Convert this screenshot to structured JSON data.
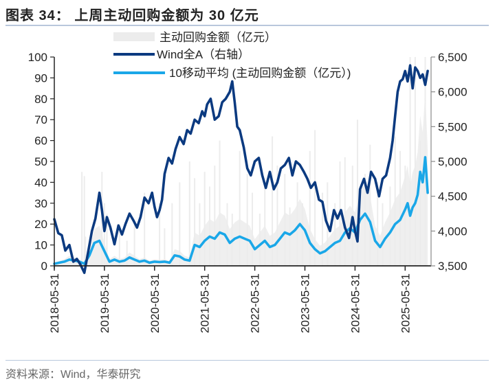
{
  "title": "图表 34： 上周主动回购金额为 30 亿元",
  "source": "资料来源：Wind，华泰研究",
  "colors": {
    "bars": "#ececec",
    "wind": "#0b3a80",
    "ma10": "#1aa7e8",
    "axis": "#222222",
    "rule": "#b8c7dc"
  },
  "chart_data": {
    "type": "line",
    "title": "上周主动回购金额为 30 亿元",
    "legend_position": "top",
    "legend": [
      {
        "key": "bars",
        "label": "主动回购金额（亿元）"
      },
      {
        "key": "wind",
        "label": "Wind全A（右轴）"
      },
      {
        "key": "ma10",
        "label": "10移动平均 (主动回购金额（亿元）)"
      }
    ],
    "x_ticks": [
      "2018-05-31",
      "2019-05-31",
      "2020-05-31",
      "2021-05-31",
      "2022-05-31",
      "2023-05-31",
      "2024-05-31",
      "2025-05-31"
    ],
    "y_left": {
      "min": 0,
      "max": 100,
      "ticks": [
        "0",
        "10",
        "20",
        "30",
        "40",
        "50",
        "60",
        "70",
        "80",
        "90",
        "100"
      ]
    },
    "y_right": {
      "min": 3500,
      "max": 6500,
      "ticks": [
        "3,500",
        "4,000",
        "4,500",
        "5,000",
        "5,500",
        "6,000",
        "6,500"
      ]
    },
    "grid": false,
    "series": [
      {
        "name": "Wind全A（右轴）",
        "axis": "right",
        "t": [
          0,
          0.08,
          0.15,
          0.22,
          0.3,
          0.38,
          0.45,
          0.52,
          0.6,
          0.68,
          0.75,
          0.82,
          0.9,
          0.95,
          1.0,
          1.05,
          1.12,
          1.2,
          1.28,
          1.35,
          1.42,
          1.5,
          1.58,
          1.65,
          1.72,
          1.8,
          1.88,
          1.95,
          2.0,
          2.05,
          2.1,
          2.15,
          2.2,
          2.28,
          2.35,
          2.42,
          2.5,
          2.58,
          2.65,
          2.72,
          2.8,
          2.88,
          2.95,
          3.0,
          3.05,
          3.12,
          3.2,
          3.28,
          3.35,
          3.42,
          3.5,
          3.55,
          3.6,
          3.65,
          3.7,
          3.78,
          3.85,
          3.92,
          4.0,
          4.08,
          4.15,
          4.22,
          4.3,
          4.38,
          4.45,
          4.52,
          4.6,
          4.68,
          4.75,
          4.82,
          4.9,
          4.98,
          5.05,
          5.12,
          5.2,
          5.28,
          5.35,
          5.42,
          5.5,
          5.58,
          5.65,
          5.72,
          5.8,
          5.88,
          5.95,
          6.0,
          6.05,
          6.1,
          6.18,
          6.25,
          6.32,
          6.4,
          6.48,
          6.55,
          6.62,
          6.7,
          6.75,
          6.8,
          6.85,
          6.9,
          6.95,
          7.0,
          7.05,
          7.1,
          7.15,
          7.2,
          7.25,
          7.3,
          7.35,
          7.4,
          7.45
        ],
        "values": [
          4170,
          3970,
          3940,
          3720,
          3800,
          3560,
          3600,
          3520,
          3400,
          3720,
          4000,
          4180,
          4550,
          4300,
          4000,
          4200,
          4050,
          3810,
          4080,
          3950,
          4100,
          4250,
          4150,
          4050,
          4200,
          4480,
          4400,
          4550,
          4350,
          4200,
          4300,
          4450,
          4820,
          5050,
          4970,
          5180,
          5350,
          5250,
          5450,
          5400,
          5600,
          5550,
          5720,
          5650,
          5820,
          5900,
          5600,
          5650,
          5850,
          5900,
          6000,
          6150,
          5850,
          5500,
          5450,
          5200,
          4900,
          4800,
          5000,
          5050,
          4800,
          4620,
          4850,
          4600,
          4700,
          4900,
          4950,
          5050,
          4800,
          5000,
          4950,
          4850,
          4750,
          4620,
          4700,
          4450,
          4420,
          4150,
          4000,
          4300,
          4180,
          4300,
          4050,
          3900,
          4200,
          4000,
          3850,
          4600,
          4750,
          4550,
          4850,
          4750,
          4500,
          4750,
          4800,
          5050,
          5300,
          5650,
          6000,
          6150,
          6180,
          6300,
          6150,
          6380,
          6050,
          6350,
          6300,
          6200,
          6250,
          6100,
          6300
        ]
      },
      {
        "name": "10移动平均 (主动回购金额（亿元）)",
        "axis": "left",
        "t": [
          0,
          0.1,
          0.2,
          0.3,
          0.4,
          0.5,
          0.6,
          0.7,
          0.8,
          0.9,
          1.0,
          1.1,
          1.2,
          1.3,
          1.4,
          1.5,
          1.6,
          1.7,
          1.8,
          1.9,
          2.0,
          2.1,
          2.2,
          2.3,
          2.4,
          2.5,
          2.6,
          2.7,
          2.8,
          2.9,
          3.0,
          3.1,
          3.2,
          3.3,
          3.4,
          3.5,
          3.6,
          3.7,
          3.8,
          3.9,
          4.0,
          4.1,
          4.2,
          4.3,
          4.4,
          4.5,
          4.6,
          4.7,
          4.8,
          4.9,
          5.0,
          5.1,
          5.2,
          5.3,
          5.4,
          5.5,
          5.6,
          5.7,
          5.8,
          5.9,
          6.0,
          6.1,
          6.2,
          6.3,
          6.4,
          6.5,
          6.6,
          6.7,
          6.8,
          6.9,
          7.0,
          7.05,
          7.1,
          7.15,
          7.2,
          7.25,
          7.3,
          7.35,
          7.4,
          7.45
        ],
        "values": [
          1,
          1.5,
          2,
          3,
          2.5,
          2,
          1,
          5,
          11,
          12,
          7,
          2,
          3,
          2,
          2.5,
          4,
          3,
          2,
          2.5,
          1.5,
          2,
          1.8,
          2,
          1.5,
          5,
          4.5,
          3,
          2.5,
          10,
          9,
          12,
          14,
          13,
          16,
          15,
          11,
          13,
          14,
          13,
          12,
          8,
          10,
          12,
          9,
          10,
          13,
          16,
          15,
          17,
          20,
          17,
          11,
          8,
          6,
          7,
          9,
          11,
          12,
          16,
          18,
          16,
          22,
          25,
          21,
          12,
          9,
          13,
          16,
          20,
          22,
          27,
          30,
          24,
          28,
          30,
          34,
          45,
          40,
          52,
          35
        ]
      }
    ],
    "bars": {
      "name": "主动回购金额（亿元）",
      "axis": "left",
      "t": [
        0.55,
        0.6,
        0.62,
        0.95,
        1.0,
        1.05,
        1.3,
        1.45,
        1.6,
        1.8,
        2.1,
        2.2,
        2.35,
        2.5,
        2.7,
        2.8,
        2.9,
        3.0,
        3.1,
        3.2,
        3.3,
        3.45,
        3.55,
        3.7,
        3.85,
        3.95,
        4.1,
        4.2,
        4.35,
        4.45,
        4.6,
        4.7,
        4.85,
        4.95,
        5.1,
        5.2,
        5.35,
        5.45,
        5.6,
        5.7,
        5.8,
        5.95,
        6.05,
        6.2,
        6.3,
        6.45,
        6.55,
        6.7,
        6.8,
        6.9,
        7.0,
        7.1,
        7.2,
        7.3,
        7.4
      ],
      "values": [
        45,
        43,
        14,
        45,
        30,
        25,
        18,
        12,
        20,
        35,
        30,
        18,
        30,
        40,
        50,
        42,
        30,
        45,
        38,
        48,
        60,
        30,
        25,
        55,
        44,
        35,
        25,
        40,
        62,
        48,
        44,
        28,
        40,
        30,
        55,
        65,
        35,
        40,
        30,
        50,
        52,
        48,
        70,
        44,
        58,
        40,
        30,
        38,
        62,
        55,
        48,
        100,
        100,
        60,
        100
      ]
    }
  }
}
